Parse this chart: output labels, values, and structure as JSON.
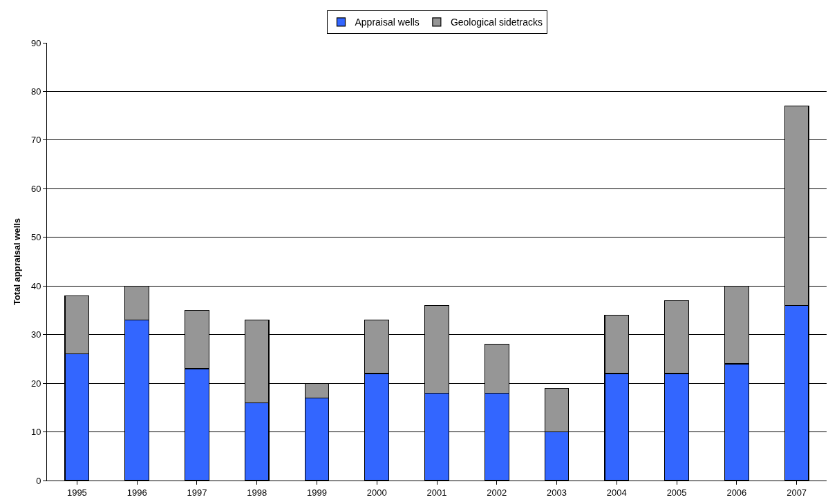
{
  "chart_data": {
    "type": "bar",
    "stacked": true,
    "ylabel": "Total appraisal wells",
    "categories": [
      "1995",
      "1996",
      "1997",
      "1998",
      "1999",
      "2000",
      "2001",
      "2002",
      "2003",
      "2004",
      "2005",
      "2006",
      "2007"
    ],
    "series": [
      {
        "name": "Appraisal wells",
        "color": "#3366ff",
        "values": [
          26,
          33,
          23,
          16,
          17,
          22,
          18,
          18,
          10,
          22,
          22,
          24,
          36
        ]
      },
      {
        "name": "Geological sidetracks",
        "color": "#969696",
        "values": [
          12,
          7,
          12,
          17,
          3,
          11,
          18,
          10,
          9,
          12,
          15,
          16,
          41
        ]
      }
    ],
    "ylim": [
      0,
      90
    ],
    "yticks": [
      0,
      10,
      20,
      30,
      40,
      50,
      60,
      70,
      80,
      90
    ],
    "grid": "y",
    "legend": "top"
  }
}
